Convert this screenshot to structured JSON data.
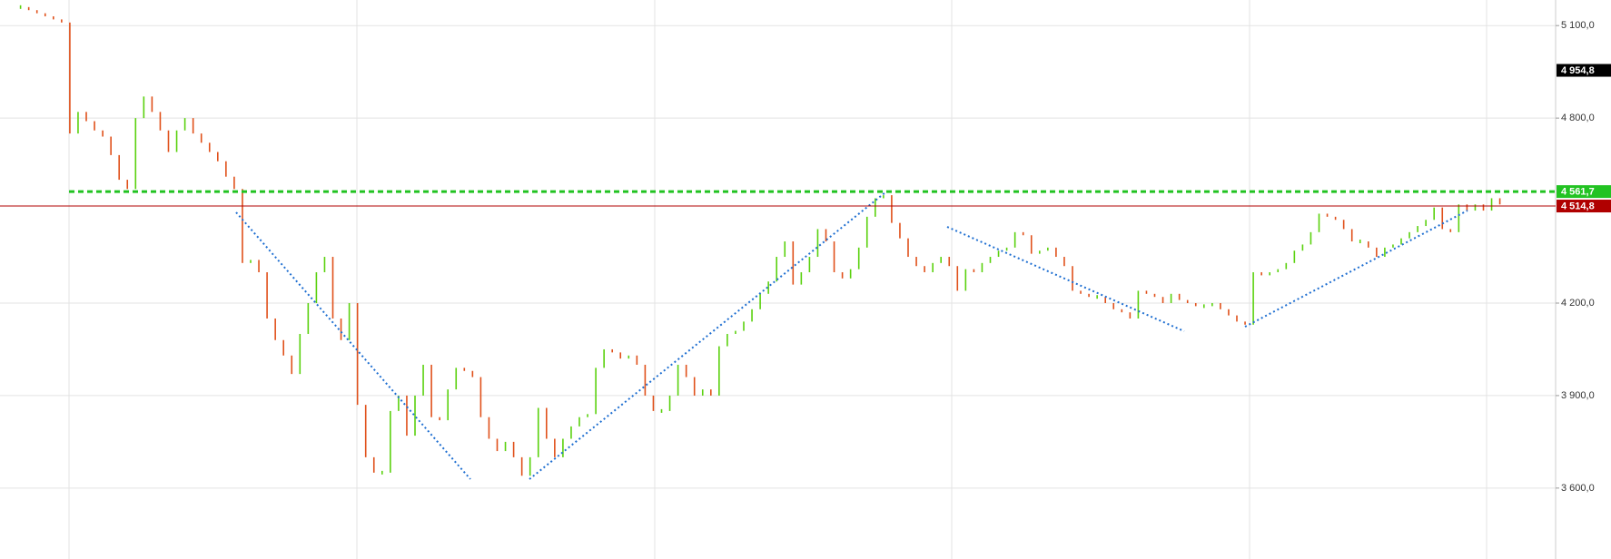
{
  "chart_data": {
    "type": "candles",
    "values": [
      5160,
      5150,
      5140,
      5130,
      5120,
      5110,
      4750,
      4820,
      4790,
      4760,
      4740,
      4680,
      4600,
      4570,
      4800,
      4870,
      4820,
      4760,
      4690,
      4760,
      4800,
      4750,
      4720,
      4690,
      4660,
      4610,
      4570,
      4330,
      4340,
      4300,
      4150,
      4080,
      4030,
      3970,
      4100,
      4200,
      4300,
      4350,
      4150,
      4080,
      4200,
      3870,
      3700,
      3650,
      3650,
      3850,
      3900,
      3770,
      3900,
      4000,
      3830,
      3820,
      3920,
      3990,
      3980,
      3960,
      3830,
      3760,
      3720,
      3750,
      3700,
      3640,
      3700,
      3860,
      3760,
      3700,
      3760,
      3800,
      3830,
      3840,
      3990,
      4050,
      4040,
      4020,
      4030,
      4000,
      3900,
      3850,
      3850,
      3900,
      4000,
      3960,
      3900,
      3920,
      3900,
      4060,
      4100,
      4110,
      4140,
      4180,
      4230,
      4270,
      4350,
      4400,
      4260,
      4300,
      4350,
      4440,
      4400,
      4300,
      4280,
      4310,
      4380,
      4480,
      4540,
      4550,
      4460,
      4410,
      4350,
      4320,
      4300,
      4330,
      4350,
      4320,
      4240,
      4310,
      4300,
      4330,
      4350,
      4370,
      4380,
      4430,
      4420,
      4360,
      4370,
      4380,
      4350,
      4320,
      4240,
      4230,
      4220,
      4220,
      4200,
      4180,
      4170,
      4150,
      4240,
      4230,
      4220,
      4200,
      4230,
      4210,
      4200,
      4190,
      4190,
      4200,
      4180,
      4160,
      4140,
      4130,
      4300,
      4290,
      4300,
      4310,
      4330,
      4370,
      4390,
      4430,
      4490,
      4480,
      4470,
      4440,
      4400,
      4400,
      4380,
      4350,
      4380,
      4390,
      4410,
      4430,
      4450,
      4470,
      4510,
      4440,
      4430,
      4520,
      4500,
      4520,
      4500,
      4540,
      4520
    ],
    "up_color": "#5ad10e",
    "down_color": "#e0501a",
    "ylim": [
      3370,
      5183
    ],
    "yticks": [
      {
        "value": 3600,
        "label": "3 600,0"
      },
      {
        "value": 3900,
        "label": "3 900,0"
      },
      {
        "value": 4200,
        "label": "4 200,0"
      },
      {
        "value": 4800,
        "label": "4 800,0"
      },
      {
        "value": 5100,
        "label": "5 100,0"
      }
    ],
    "grid": true,
    "levels": [
      {
        "value": 4954.8,
        "label": "4 954,8",
        "color": "#000000",
        "line": false
      },
      {
        "value": 4561.7,
        "label": "4 561,7",
        "color": "#22c322",
        "line": true
      },
      {
        "value": 4514.8,
        "label": "4 514,8",
        "color": "#b00000",
        "line": true
      }
    ]
  }
}
